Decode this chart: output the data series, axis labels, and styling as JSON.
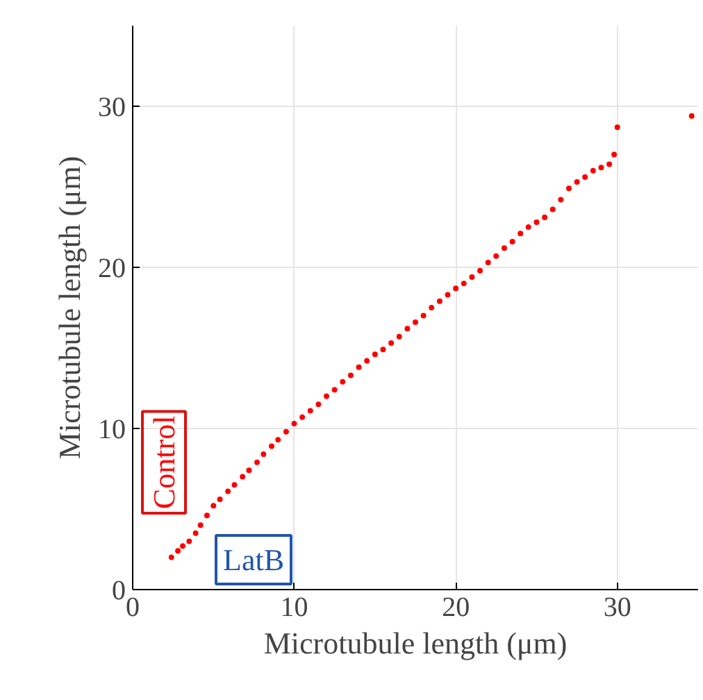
{
  "chart_data": {
    "type": "scatter",
    "xlabel": "Microtubule length (μm)",
    "ylabel": "Microtubule length (μm)",
    "annotations": [
      "Control",
      "LatB"
    ],
    "xlim": [
      0,
      35
    ],
    "ylim": [
      0,
      35
    ],
    "xticks": [
      0,
      10,
      20,
      30
    ],
    "yticks": [
      0,
      10,
      20,
      30
    ],
    "grid": true,
    "marker": "circle",
    "series": [
      {
        "color": "#ff0000",
        "x": [
          2.4,
          2.8,
          3.1,
          3.5,
          3.9,
          4.2,
          4.6,
          5.0,
          5.4,
          5.9,
          6.3,
          6.8,
          7.2,
          7.7,
          8.1,
          8.6,
          9.0,
          9.5,
          10.0,
          10.5,
          11.0,
          11.5,
          12.0,
          12.5,
          13.0,
          13.5,
          14.0,
          14.5,
          15.0,
          15.5,
          16.0,
          16.5,
          17.0,
          17.5,
          18.0,
          18.5,
          19.0,
          19.5,
          20.0,
          20.5,
          21.0,
          21.5,
          22.0,
          22.5,
          23.0,
          23.5,
          24.0,
          24.5,
          25.0,
          25.5,
          26.0,
          26.5,
          27.0,
          27.5,
          28.0,
          28.5,
          29.0,
          29.5,
          29.8,
          30.0,
          34.6
        ],
        "values": [
          2.0,
          2.4,
          2.7,
          3.0,
          3.5,
          4.0,
          4.6,
          5.2,
          5.6,
          6.1,
          6.5,
          7.0,
          7.4,
          7.9,
          8.4,
          8.9,
          9.3,
          9.8,
          10.3,
          10.7,
          11.1,
          11.5,
          12.0,
          12.4,
          12.9,
          13.3,
          13.8,
          14.2,
          14.6,
          14.9,
          15.3,
          15.7,
          16.2,
          16.6,
          17.0,
          17.5,
          17.9,
          18.3,
          18.7,
          19.0,
          19.4,
          19.8,
          20.3,
          20.7,
          21.2,
          21.6,
          22.1,
          22.5,
          22.8,
          23.1,
          23.6,
          24.2,
          24.9,
          25.3,
          25.6,
          26.0,
          26.2,
          26.4,
          27.0,
          28.7,
          29.4
        ]
      }
    ]
  }
}
